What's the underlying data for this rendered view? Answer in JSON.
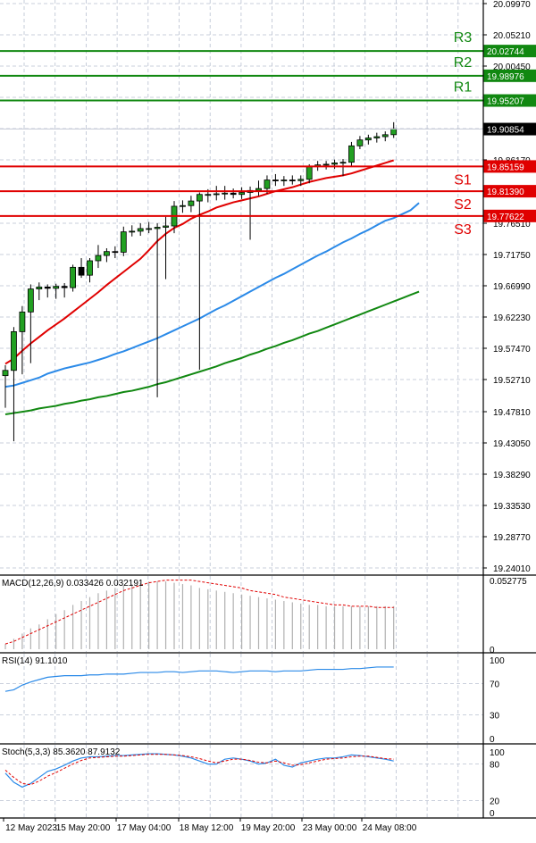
{
  "chart_data": {
    "type": "candlestick",
    "colors": {
      "bull": "#22a022",
      "bear": "#000000",
      "ma_fast": "#e00000",
      "ma_mid": "#2b8ae8",
      "ma_slow": "#118811",
      "support": "#e00000",
      "resistance": "#118811",
      "grid": "#b8c0d0",
      "price_tag": "#000000"
    },
    "main": {
      "y_ticks": [
        "20.09970",
        "20.05210",
        "20.00450",
        "19.95690",
        "19.90930",
        "19.86170",
        "19.81410",
        "19.76510",
        "19.71750",
        "19.66990",
        "19.62230",
        "19.57470",
        "19.52710",
        "19.47810",
        "19.43050",
        "19.38290",
        "19.33530",
        "19.28770",
        "19.24010"
      ],
      "ylim": [
        19.2401,
        20.0997
      ],
      "current_price": "19.90854",
      "current_price_value": 19.90854,
      "levels": [
        {
          "name": "R3",
          "label": "20.02744",
          "value": 20.02744,
          "kind": "resistance"
        },
        {
          "name": "R2",
          "label": "19.98976",
          "value": 19.98976,
          "kind": "resistance"
        },
        {
          "name": "R1",
          "label": "19.95207",
          "value": 19.95207,
          "kind": "resistance"
        },
        {
          "name": "S1",
          "label": "19.85159",
          "value": 19.85159,
          "kind": "support"
        },
        {
          "name": "S2",
          "label": "19.81390",
          "value": 19.8139,
          "kind": "support"
        },
        {
          "name": "S3",
          "label": "19.77622",
          "value": 19.77622,
          "kind": "support"
        }
      ],
      "candles": [
        [
          19.533,
          19.549,
          19.484,
          19.541
        ],
        [
          19.541,
          19.607,
          19.433,
          19.6
        ],
        [
          19.6,
          19.639,
          19.535,
          19.63
        ],
        [
          19.63,
          19.672,
          19.552,
          19.665
        ],
        [
          19.665,
          19.675,
          19.648,
          19.668
        ],
        [
          19.668,
          19.672,
          19.652,
          19.666
        ],
        [
          19.666,
          19.673,
          19.65,
          19.669
        ],
        [
          19.669,
          19.674,
          19.652,
          19.667
        ],
        [
          19.667,
          19.702,
          19.661,
          19.698
        ],
        [
          19.698,
          19.712,
          19.682,
          19.686
        ],
        [
          19.686,
          19.712,
          19.675,
          19.708
        ],
        [
          19.708,
          19.732,
          19.697,
          19.716
        ],
        [
          19.716,
          19.727,
          19.706,
          19.722
        ],
        [
          19.722,
          19.73,
          19.712,
          19.721
        ],
        [
          19.721,
          19.76,
          19.715,
          19.752
        ],
        [
          19.752,
          19.762,
          19.745,
          19.753
        ],
        [
          19.753,
          19.765,
          19.746,
          19.757
        ],
        [
          19.757,
          19.767,
          19.75,
          19.757
        ],
        [
          19.757,
          19.765,
          19.5,
          19.759
        ],
        [
          19.759,
          19.775,
          19.68,
          19.761
        ],
        [
          19.761,
          19.799,
          19.75,
          19.791
        ],
        [
          19.791,
          19.8,
          19.781,
          19.792
        ],
        [
          19.792,
          19.807,
          19.782,
          19.799
        ],
        [
          19.799,
          19.812,
          19.542,
          19.809
        ],
        [
          19.809,
          19.817,
          19.797,
          19.809
        ],
        [
          19.809,
          19.822,
          19.8,
          19.81
        ],
        [
          19.81,
          19.822,
          19.801,
          19.811
        ],
        [
          19.811,
          19.818,
          19.803,
          19.809
        ],
        [
          19.809,
          19.82,
          19.802,
          19.812
        ],
        [
          19.812,
          19.821,
          19.74,
          19.815
        ],
        [
          19.815,
          19.83,
          19.807,
          19.818
        ],
        [
          19.818,
          19.838,
          19.81,
          19.831
        ],
        [
          19.831,
          19.84,
          19.822,
          19.83
        ],
        [
          19.83,
          19.837,
          19.822,
          19.831
        ],
        [
          19.831,
          19.838,
          19.824,
          19.83
        ],
        [
          19.83,
          19.838,
          19.822,
          19.832
        ],
        [
          19.832,
          19.855,
          19.826,
          19.852
        ],
        [
          19.852,
          19.86,
          19.845,
          19.854
        ],
        [
          19.854,
          19.86,
          19.847,
          19.855
        ],
        [
          19.855,
          19.862,
          19.848,
          19.857
        ],
        [
          19.857,
          19.863,
          19.837,
          19.858
        ],
        [
          19.858,
          19.889,
          19.852,
          19.883
        ],
        [
          19.883,
          19.898,
          19.878,
          19.892
        ],
        [
          19.892,
          19.9,
          19.885,
          19.895
        ],
        [
          19.895,
          19.903,
          19.888,
          19.897
        ],
        [
          19.897,
          19.905,
          19.89,
          19.9
        ],
        [
          19.9,
          19.919,
          19.895,
          19.909
        ]
      ],
      "ma_fast": [
        19.551,
        19.559,
        19.571,
        19.582,
        19.592,
        19.602,
        19.611,
        19.62,
        19.63,
        19.64,
        19.65,
        19.66,
        19.671,
        19.681,
        19.691,
        19.701,
        19.711,
        19.724,
        19.738,
        19.749,
        19.758,
        19.764,
        19.772,
        19.778,
        19.783,
        19.789,
        19.793,
        19.797,
        19.8,
        19.803,
        19.806,
        19.81,
        19.814,
        19.817,
        19.82,
        19.824,
        19.828,
        19.831,
        19.834,
        19.836,
        19.838,
        19.841,
        19.845,
        19.849,
        19.853,
        19.857,
        19.861
      ],
      "ma_mid": [
        19.516,
        19.518,
        19.522,
        19.526,
        19.53,
        19.536,
        19.54,
        19.544,
        19.547,
        19.55,
        19.553,
        19.557,
        19.561,
        19.566,
        19.57,
        19.575,
        19.58,
        19.585,
        19.59,
        19.596,
        19.602,
        19.608,
        19.614,
        19.62,
        19.627,
        19.634,
        19.64,
        19.647,
        19.654,
        19.661,
        19.668,
        19.675,
        19.682,
        19.688,
        19.695,
        19.702,
        19.709,
        19.716,
        19.722,
        19.729,
        19.736,
        19.742,
        19.749,
        19.755,
        19.762,
        19.769,
        19.773,
        19.779,
        19.785,
        19.796
      ],
      "ma_slow": [
        19.474,
        19.476,
        19.478,
        19.48,
        19.483,
        19.485,
        19.487,
        19.49,
        19.492,
        19.495,
        19.497,
        19.5,
        19.502,
        19.505,
        19.508,
        19.51,
        19.513,
        19.516,
        19.52,
        19.523,
        19.527,
        19.531,
        19.535,
        19.539,
        19.543,
        19.547,
        19.552,
        19.556,
        19.56,
        19.565,
        19.569,
        19.574,
        19.578,
        19.583,
        19.587,
        19.592,
        19.597,
        19.601,
        19.606,
        19.611,
        19.616,
        19.621,
        19.626,
        19.631,
        19.636,
        19.641,
        19.646,
        19.651,
        19.656,
        19.661
      ]
    },
    "macd": {
      "label": "MACD(12,26,9) 0.033426 0.032191",
      "y_ticks": [
        "0.052775",
        "0"
      ],
      "ylim": [
        0,
        0.052775
      ],
      "histogram": [
        0.004,
        0.008,
        0.012,
        0.016,
        0.019,
        0.023,
        0.027,
        0.03,
        0.034,
        0.037,
        0.04,
        0.043,
        0.045,
        0.047,
        0.049,
        0.05,
        0.051,
        0.052,
        0.052,
        0.052,
        0.051,
        0.05,
        0.049,
        0.047,
        0.046,
        0.045,
        0.044,
        0.043,
        0.042,
        0.041,
        0.04,
        0.039,
        0.038,
        0.037,
        0.036,
        0.035,
        0.034,
        0.034,
        0.033,
        0.033,
        0.033,
        0.033,
        0.033,
        0.033,
        0.033,
        0.033,
        0.033
      ],
      "signal": [
        0.004,
        0.006,
        0.009,
        0.012,
        0.015,
        0.018,
        0.021,
        0.024,
        0.027,
        0.03,
        0.033,
        0.036,
        0.039,
        0.042,
        0.045,
        0.047,
        0.049,
        0.051,
        0.052,
        0.053,
        0.053,
        0.053,
        0.053,
        0.052,
        0.051,
        0.05,
        0.049,
        0.048,
        0.047,
        0.045,
        0.044,
        0.043,
        0.042,
        0.04,
        0.039,
        0.038,
        0.037,
        0.036,
        0.035,
        0.034,
        0.034,
        0.033,
        0.033,
        0.033,
        0.032,
        0.032,
        0.032
      ]
    },
    "rsi": {
      "label": "RSI(14) 91.1010",
      "y_ticks": [
        "100",
        "70",
        "30",
        "0"
      ],
      "ylim": [
        0,
        100
      ],
      "values": [
        60,
        62,
        68,
        72,
        75,
        78,
        79,
        80,
        80,
        80,
        81,
        81,
        82,
        82,
        82,
        83,
        84,
        84,
        84,
        85,
        85,
        84,
        85,
        86,
        86,
        86,
        85,
        84,
        85,
        86,
        86,
        86,
        85,
        86,
        86,
        86,
        87,
        88,
        88,
        88,
        88,
        89,
        89,
        90,
        91,
        91,
        91
      ]
    },
    "stoch": {
      "label": "Stoch(5,3,3) 85.3620 87.9132",
      "y_ticks": [
        "100",
        "80",
        "20",
        "0"
      ],
      "ylim": [
        0,
        100
      ],
      "k": [
        65,
        50,
        42,
        48,
        58,
        68,
        72,
        78,
        85,
        90,
        92,
        92,
        93,
        94,
        94,
        95,
        96,
        97,
        97,
        96,
        95,
        93,
        90,
        85,
        80,
        80,
        88,
        90,
        88,
        85,
        80,
        82,
        88,
        78,
        75,
        82,
        85,
        88,
        90,
        90,
        92,
        95,
        94,
        92,
        90,
        88,
        85
      ],
      "d": [
        70,
        58,
        48,
        46,
        52,
        60,
        66,
        73,
        80,
        86,
        90,
        91,
        92,
        93,
        93,
        94,
        95,
        96,
        96,
        96,
        95,
        94,
        92,
        89,
        85,
        82,
        85,
        88,
        88,
        86,
        83,
        82,
        85,
        82,
        78,
        79,
        82,
        85,
        88,
        89,
        90,
        92,
        93,
        93,
        91,
        89,
        88
      ]
    },
    "x_labels": [
      "12 May 2023",
      "15 May 20:00",
      "17 May 04:00",
      "18 May 12:00",
      "19 May 20:00",
      "23 May 00:00",
      "24 May 08:00"
    ]
  }
}
